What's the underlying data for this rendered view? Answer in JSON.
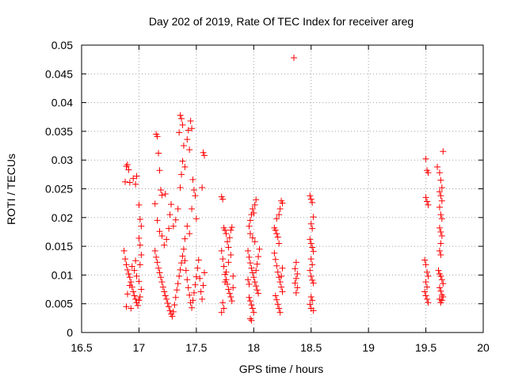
{
  "chart_data": {
    "type": "scatter",
    "title": "Day 202 of 2019, Rate Of TEC Index for receiver areg",
    "xlabel": "GPS time / hours",
    "ylabel": "ROTI / TECUs",
    "xlim": [
      16.5,
      20
    ],
    "ylim": [
      0,
      0.05
    ],
    "xticks": [
      "16.5",
      "17",
      "17.5",
      "18",
      "18.5",
      "19",
      "19.5",
      "20"
    ],
    "yticks": [
      "0",
      "0.005",
      "0.01",
      "0.015",
      "0.02",
      "0.025",
      "0.03",
      "0.035",
      "0.04",
      "0.045",
      "0.05"
    ],
    "grid": true,
    "marker": "+",
    "series": [
      {
        "name": "ROTI",
        "color": "#ff0000",
        "points": [
          [
            16.88,
            0.0262
          ],
          [
            16.89,
            0.0289
          ],
          [
            16.9,
            0.0292
          ],
          [
            16.91,
            0.0283
          ],
          [
            16.92,
            0.0261
          ],
          [
            16.95,
            0.0268
          ],
          [
            16.97,
            0.0258
          ],
          [
            16.98,
            0.0272
          ],
          [
            17.0,
            0.0222
          ],
          [
            17.01,
            0.0197
          ],
          [
            17.02,
            0.0185
          ],
          [
            17.0,
            0.0164
          ],
          [
            17.01,
            0.0152
          ],
          [
            16.87,
            0.0142
          ],
          [
            16.88,
            0.0128
          ],
          [
            16.89,
            0.0118
          ],
          [
            16.9,
            0.0109
          ],
          [
            16.91,
            0.0102
          ],
          [
            16.92,
            0.0096
          ],
          [
            16.93,
            0.0088
          ],
          [
            16.94,
            0.0079
          ],
          [
            16.95,
            0.0071
          ],
          [
            16.96,
            0.0064
          ],
          [
            16.97,
            0.0058
          ],
          [
            16.98,
            0.0052
          ],
          [
            16.99,
            0.0047
          ],
          [
            17.0,
            0.0056
          ],
          [
            17.01,
            0.0062
          ],
          [
            17.02,
            0.0075
          ],
          [
            17.0,
            0.0089
          ],
          [
            16.98,
            0.0098
          ],
          [
            16.96,
            0.0108
          ],
          [
            16.94,
            0.0115
          ],
          [
            16.92,
            0.0082
          ],
          [
            16.9,
            0.0067
          ],
          [
            16.89,
            0.0045
          ],
          [
            16.93,
            0.0042
          ],
          [
            17.01,
            0.0118
          ],
          [
            17.02,
            0.0135
          ],
          [
            16.97,
            0.0125
          ],
          [
            17.15,
            0.0345
          ],
          [
            17.16,
            0.0341
          ],
          [
            17.17,
            0.0312
          ],
          [
            17.18,
            0.0282
          ],
          [
            17.19,
            0.0248
          ],
          [
            17.2,
            0.0239
          ],
          [
            17.23,
            0.0241
          ],
          [
            17.14,
            0.0224
          ],
          [
            17.16,
            0.0195
          ],
          [
            17.18,
            0.0176
          ],
          [
            17.2,
            0.0168
          ],
          [
            17.22,
            0.0152
          ],
          [
            17.24,
            0.0162
          ],
          [
            17.26,
            0.0181
          ],
          [
            17.27,
            0.0205
          ],
          [
            17.28,
            0.0223
          ],
          [
            17.14,
            0.0142
          ],
          [
            17.15,
            0.0131
          ],
          [
            17.16,
            0.0122
          ],
          [
            17.17,
            0.0112
          ],
          [
            17.18,
            0.0104
          ],
          [
            17.19,
            0.0096
          ],
          [
            17.2,
            0.0088
          ],
          [
            17.21,
            0.0079
          ],
          [
            17.22,
            0.0071
          ],
          [
            17.23,
            0.0064
          ],
          [
            17.24,
            0.0058
          ],
          [
            17.25,
            0.0051
          ],
          [
            17.26,
            0.0045
          ],
          [
            17.27,
            0.0038
          ],
          [
            17.28,
            0.0032
          ],
          [
            17.29,
            0.0028
          ],
          [
            17.3,
            0.0036
          ],
          [
            17.31,
            0.0048
          ],
          [
            17.32,
            0.0061
          ],
          [
            17.33,
            0.0074
          ],
          [
            17.34,
            0.0085
          ],
          [
            17.35,
            0.0098
          ],
          [
            17.36,
            0.0109
          ],
          [
            17.37,
            0.0121
          ],
          [
            17.38,
            0.0133
          ],
          [
            17.39,
            0.0145
          ],
          [
            17.4,
            0.0125
          ],
          [
            17.41,
            0.0108
          ],
          [
            17.42,
            0.0092
          ],
          [
            17.43,
            0.0078
          ],
          [
            17.44,
            0.0065
          ],
          [
            17.45,
            0.0052
          ],
          [
            17.46,
            0.0043
          ],
          [
            17.47,
            0.0056
          ],
          [
            17.48,
            0.0069
          ],
          [
            17.49,
            0.0083
          ],
          [
            17.5,
            0.0097
          ],
          [
            17.51,
            0.0112
          ],
          [
            17.52,
            0.0126
          ],
          [
            17.53,
            0.0094
          ],
          [
            17.54,
            0.0071
          ],
          [
            17.55,
            0.0058
          ],
          [
            17.56,
            0.0082
          ],
          [
            17.57,
            0.0104
          ],
          [
            17.3,
            0.0185
          ],
          [
            17.32,
            0.0196
          ],
          [
            17.34,
            0.0215
          ],
          [
            17.36,
            0.0252
          ],
          [
            17.37,
            0.0275
          ],
          [
            17.38,
            0.0298
          ],
          [
            17.35,
            0.0348
          ],
          [
            17.36,
            0.0378
          ],
          [
            17.37,
            0.0372
          ],
          [
            17.38,
            0.0361
          ],
          [
            17.39,
            0.0325
          ],
          [
            17.4,
            0.0288
          ],
          [
            17.42,
            0.0336
          ],
          [
            17.43,
            0.0352
          ],
          [
            17.44,
            0.0318
          ],
          [
            17.45,
            0.0368
          ],
          [
            17.46,
            0.0355
          ],
          [
            17.47,
            0.0266
          ],
          [
            17.48,
            0.0248
          ],
          [
            17.49,
            0.0238
          ],
          [
            17.5,
            0.0198
          ],
          [
            17.46,
            0.0215
          ],
          [
            17.42,
            0.0185
          ],
          [
            17.44,
            0.0172
          ],
          [
            17.4,
            0.0163
          ],
          [
            17.56,
            0.0313
          ],
          [
            17.57,
            0.0308
          ],
          [
            17.55,
            0.0252
          ],
          [
            17.72,
            0.0236
          ],
          [
            17.73,
            0.0232
          ],
          [
            17.74,
            0.0182
          ],
          [
            17.75,
            0.0178
          ],
          [
            17.76,
            0.0172
          ],
          [
            17.77,
            0.0158
          ],
          [
            17.78,
            0.0148
          ],
          [
            17.79,
            0.0165
          ],
          [
            17.8,
            0.0178
          ],
          [
            17.81,
            0.0183
          ],
          [
            17.72,
            0.0142
          ],
          [
            17.73,
            0.0128
          ],
          [
            17.74,
            0.0115
          ],
          [
            17.75,
            0.0101
          ],
          [
            17.76,
            0.0092
          ],
          [
            17.77,
            0.0084
          ],
          [
            17.78,
            0.0075
          ],
          [
            17.79,
            0.0068
          ],
          [
            17.8,
            0.0062
          ],
          [
            17.81,
            0.0055
          ],
          [
            17.82,
            0.0078
          ],
          [
            17.73,
            0.0052
          ],
          [
            17.74,
            0.0042
          ],
          [
            17.72,
            0.0035
          ],
          [
            17.76,
            0.0105
          ],
          [
            17.78,
            0.0122
          ],
          [
            17.8,
            0.0135
          ],
          [
            17.82,
            0.0098
          ],
          [
            17.75,
            0.0088
          ],
          [
            17.96,
            0.0185
          ],
          [
            17.97,
            0.0195
          ],
          [
            17.98,
            0.0205
          ],
          [
            17.99,
            0.0215
          ],
          [
            18.0,
            0.0208
          ],
          [
            18.01,
            0.0222
          ],
          [
            18.02,
            0.0231
          ],
          [
            17.97,
            0.0172
          ],
          [
            17.99,
            0.0165
          ],
          [
            18.01,
            0.0158
          ],
          [
            17.95,
            0.0142
          ],
          [
            17.96,
            0.0131
          ],
          [
            17.97,
            0.0121
          ],
          [
            17.98,
            0.0112
          ],
          [
            17.99,
            0.0104
          ],
          [
            18.0,
            0.0096
          ],
          [
            18.01,
            0.0088
          ],
          [
            18.02,
            0.0081
          ],
          [
            18.03,
            0.0074
          ],
          [
            18.04,
            0.0068
          ],
          [
            17.96,
            0.0061
          ],
          [
            17.97,
            0.0055
          ],
          [
            17.98,
            0.0048
          ],
          [
            17.99,
            0.0042
          ],
          [
            17.97,
            0.0024
          ],
          [
            17.98,
            0.0021
          ],
          [
            18.0,
            0.0035
          ],
          [
            18.02,
            0.0108
          ],
          [
            18.03,
            0.0119
          ],
          [
            18.04,
            0.0132
          ],
          [
            18.05,
            0.0145
          ],
          [
            17.95,
            0.0092
          ],
          [
            17.96,
            0.0084
          ],
          [
            18.18,
            0.0182
          ],
          [
            18.19,
            0.0178
          ],
          [
            18.2,
            0.0172
          ],
          [
            18.21,
            0.0166
          ],
          [
            18.22,
            0.0155
          ],
          [
            18.23,
            0.0215
          ],
          [
            18.24,
            0.0229
          ],
          [
            18.25,
            0.0225
          ],
          [
            18.22,
            0.0205
          ],
          [
            18.2,
            0.0198
          ],
          [
            18.18,
            0.0138
          ],
          [
            18.19,
            0.0127
          ],
          [
            18.2,
            0.0116
          ],
          [
            18.21,
            0.0105
          ],
          [
            18.22,
            0.0096
          ],
          [
            18.23,
            0.0088
          ],
          [
            18.24,
            0.0079
          ],
          [
            18.25,
            0.0071
          ],
          [
            18.19,
            0.0064
          ],
          [
            18.2,
            0.0057
          ],
          [
            18.21,
            0.0049
          ],
          [
            18.22,
            0.0042
          ],
          [
            18.23,
            0.0035
          ],
          [
            18.24,
            0.0098
          ],
          [
            18.25,
            0.0112
          ],
          [
            18.35,
            0.0478
          ],
          [
            18.37,
            0.0122
          ],
          [
            18.36,
            0.0111
          ],
          [
            18.38,
            0.0102
          ],
          [
            18.37,
            0.0094
          ],
          [
            18.36,
            0.0086
          ],
          [
            18.38,
            0.0078
          ],
          [
            18.37,
            0.0069
          ],
          [
            18.49,
            0.0238
          ],
          [
            18.5,
            0.0232
          ],
          [
            18.51,
            0.0226
          ],
          [
            18.52,
            0.0201
          ],
          [
            18.5,
            0.0189
          ],
          [
            18.51,
            0.0181
          ],
          [
            18.49,
            0.0162
          ],
          [
            18.5,
            0.0155
          ],
          [
            18.51,
            0.0148
          ],
          [
            18.52,
            0.0141
          ],
          [
            18.5,
            0.0128
          ],
          [
            18.51,
            0.0118
          ],
          [
            18.49,
            0.0108
          ],
          [
            18.5,
            0.0098
          ],
          [
            18.51,
            0.0091
          ],
          [
            18.52,
            0.0086
          ],
          [
            18.5,
            0.0062
          ],
          [
            18.51,
            0.0056
          ],
          [
            18.49,
            0.0049
          ],
          [
            18.5,
            0.0042
          ],
          [
            18.52,
            0.0038
          ],
          [
            19.5,
            0.0302
          ],
          [
            19.51,
            0.0282
          ],
          [
            19.52,
            0.0278
          ],
          [
            19.5,
            0.0235
          ],
          [
            19.51,
            0.0228
          ],
          [
            19.52,
            0.0222
          ],
          [
            19.49,
            0.0126
          ],
          [
            19.5,
            0.0118
          ],
          [
            19.51,
            0.0105
          ],
          [
            19.52,
            0.0098
          ],
          [
            19.5,
            0.0088
          ],
          [
            19.51,
            0.0079
          ],
          [
            19.49,
            0.0071
          ],
          [
            19.5,
            0.0064
          ],
          [
            19.51,
            0.0058
          ],
          [
            19.52,
            0.0052
          ],
          [
            19.6,
            0.0288
          ],
          [
            19.62,
            0.0278
          ],
          [
            19.63,
            0.0265
          ],
          [
            19.64,
            0.0252
          ],
          [
            19.65,
            0.0315
          ],
          [
            19.62,
            0.0245
          ],
          [
            19.63,
            0.0238
          ],
          [
            19.64,
            0.0229
          ],
          [
            19.62,
            0.0218
          ],
          [
            19.63,
            0.0205
          ],
          [
            19.64,
            0.0198
          ],
          [
            19.62,
            0.0182
          ],
          [
            19.63,
            0.0175
          ],
          [
            19.64,
            0.0168
          ],
          [
            19.63,
            0.0155
          ],
          [
            19.62,
            0.0142
          ],
          [
            19.63,
            0.0135
          ],
          [
            19.61,
            0.0108
          ],
          [
            19.62,
            0.0102
          ],
          [
            19.63,
            0.0098
          ],
          [
            19.64,
            0.0092
          ],
          [
            19.65,
            0.0085
          ],
          [
            19.62,
            0.0078
          ],
          [
            19.63,
            0.0072
          ],
          [
            19.64,
            0.0065
          ],
          [
            19.62,
            0.0058
          ],
          [
            19.63,
            0.0052
          ],
          [
            19.64,
            0.0056
          ],
          [
            19.65,
            0.0062
          ]
        ]
      }
    ]
  }
}
